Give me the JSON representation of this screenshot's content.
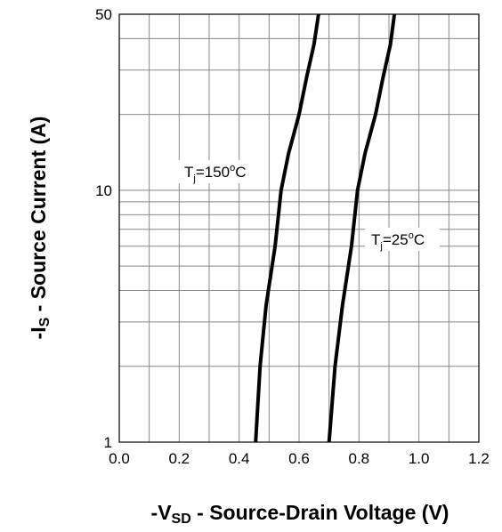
{
  "chart_data": {
    "type": "line",
    "xlabel_parts": [
      "-V",
      "SD",
      " - Source-Drain Voltage (V)"
    ],
    "ylabel_parts": [
      "-I",
      "S",
      " - Source Current (A)"
    ],
    "xlim": [
      0.0,
      1.2
    ],
    "ylim": [
      1,
      50
    ],
    "yscale": "log",
    "grid": true,
    "x_ticks": [
      "0.0",
      "0.2",
      "0.4",
      "0.6",
      "0.8",
      "1.0",
      "1.2"
    ],
    "y_ticks": [
      "1",
      "10",
      "50"
    ],
    "series": [
      {
        "label_parts": [
          "T",
          "j",
          "=150",
          "o",
          "C"
        ],
        "x": [
          0.455,
          0.47,
          0.49,
          0.52,
          0.54,
          0.565,
          0.6,
          0.625,
          0.65,
          0.665
        ],
        "y": [
          1.0,
          2.0,
          3.5,
          6.0,
          10.0,
          14.0,
          20.0,
          28.0,
          38.0,
          50.0
        ]
      },
      {
        "label_parts": [
          "T",
          "j",
          "=25",
          "o",
          "C"
        ],
        "x": [
          0.7,
          0.72,
          0.745,
          0.775,
          0.795,
          0.82,
          0.855,
          0.88,
          0.905,
          0.918
        ],
        "y": [
          1.0,
          2.0,
          3.5,
          6.0,
          10.0,
          14.0,
          20.0,
          28.0,
          38.0,
          50.0
        ]
      }
    ]
  }
}
